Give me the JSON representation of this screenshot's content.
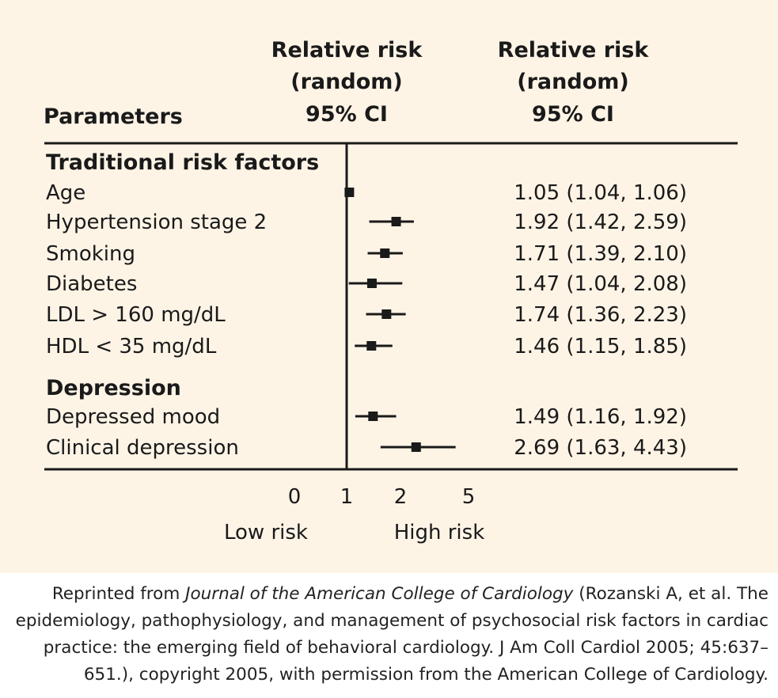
{
  "chart_data": {
    "type": "forest",
    "headers": {
      "parameters": "Parameters",
      "plot_header": [
        "Relative risk",
        "(random)",
        "95% CI"
      ],
      "value_header": [
        "Relative risk",
        "(random)",
        "95% CI"
      ]
    },
    "groups": [
      {
        "name": "Traditional risk factors",
        "rows": [
          {
            "label": "Age",
            "rr": 1.05,
            "lo": 1.04,
            "hi": 1.06,
            "text": "1.05 (1.04, 1.06)"
          },
          {
            "label": "Hypertension stage 2",
            "rr": 1.92,
            "lo": 1.42,
            "hi": 2.59,
            "text": "1.92 (1.42, 2.59)"
          },
          {
            "label": "Smoking",
            "rr": 1.71,
            "lo": 1.39,
            "hi": 2.1,
            "text": "1.71 (1.39, 2.10)"
          },
          {
            "label": "Diabetes",
            "rr": 1.47,
            "lo": 1.04,
            "hi": 2.08,
            "text": "1.47 (1.04, 2.08)"
          },
          {
            "label": "LDL > 160 mg/dL",
            "rr": 1.74,
            "lo": 1.36,
            "hi": 2.23,
            "text": "1.74 (1.36, 2.23)"
          },
          {
            "label": "HDL < 35 mg/dL",
            "rr": 1.46,
            "lo": 1.15,
            "hi": 1.85,
            "text": "1.46 (1.15, 1.85)"
          }
        ]
      },
      {
        "name": "Depression",
        "rows": [
          {
            "label": "Depressed mood",
            "rr": 1.49,
            "lo": 1.16,
            "hi": 1.92,
            "text": "1.49 (1.16, 1.92)"
          },
          {
            "label": "Clinical depression",
            "rr": 2.69,
            "lo": 1.63,
            "hi": 4.43,
            "text": "2.69 (1.63, 4.43)"
          }
        ]
      }
    ],
    "x_ticks": [
      {
        "label": "0",
        "value": 0
      },
      {
        "label": "1",
        "value": 1
      },
      {
        "label": "2",
        "value": 2
      },
      {
        "label": "5",
        "value": 5
      }
    ],
    "reference_line": 1,
    "risk_labels": {
      "low": "Low risk",
      "high": "High risk"
    },
    "colors": {
      "background": "#fdf4e6",
      "ink": "#1a1a1a"
    }
  },
  "caption": {
    "prefix": "Reprinted from ",
    "journal": "Journal of the American College of Cardiology",
    "rest": " (Rozanski A, et al. The epidemiology, pathophysiology, and management of psychosocial risk factors in cardiac practice: the emerging field of behavioral cardiology. J Am Coll Cardiol 2005; 45:637–651.), copyright 2005, with permission from the American College of Cardiology."
  }
}
